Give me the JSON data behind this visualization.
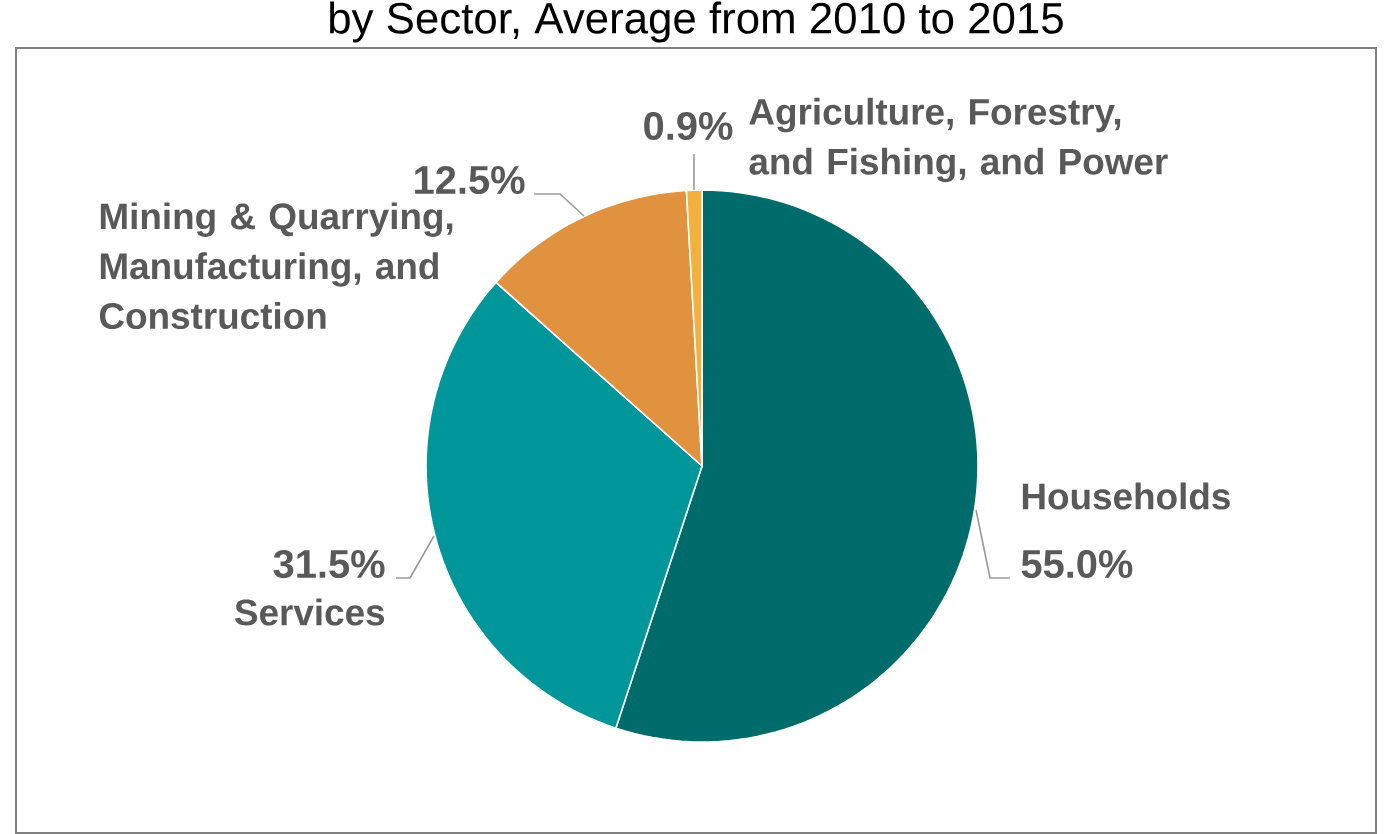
{
  "chart_data": {
    "type": "pie",
    "title": "by Sector, Average from 2010 to 2015",
    "categories": [
      "Households",
      "Services",
      "Mining & Quarrying, Manufacturing, and Construction",
      "Agriculture, Forestry, and Fishing, and Power"
    ],
    "values": [
      55.0,
      31.5,
      12.5,
      0.9
    ],
    "value_labels": [
      "55.0%",
      "31.5%",
      "12.5%",
      "0.9%"
    ],
    "colors": [
      "#006b6b",
      "#00969a",
      "#e0923f",
      "#f2b13c"
    ]
  }
}
